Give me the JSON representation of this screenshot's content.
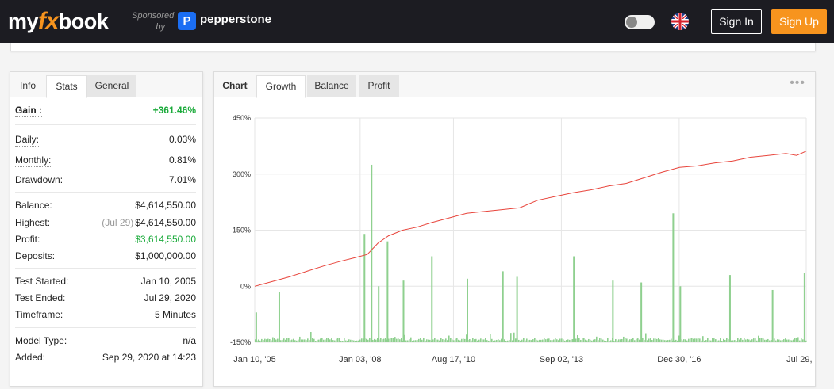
{
  "header": {
    "logo_my": "my",
    "logo_fx": "fx",
    "logo_book": "book",
    "sponsored": "Sponsored",
    "by": "by",
    "sponsor_icon": "P",
    "sponsor_name": "pepperstone",
    "theme_toggle_icon": "toggle-icon",
    "language_icon": "uk-flag-icon",
    "sign_in": "Sign In",
    "sign_up": "Sign Up",
    "accent": "#f7941e"
  },
  "stats_panel": {
    "tabs": [
      "Info",
      "Stats",
      "General"
    ],
    "active_tab": "Stats",
    "gain": {
      "label": "Gain :",
      "value": "+361.46%"
    },
    "daily": {
      "label": "Daily:",
      "value": "0.03%"
    },
    "monthly": {
      "label": "Monthly:",
      "value": "0.81%"
    },
    "drawdown": {
      "label": "Drawdown:",
      "value": "7.01%"
    },
    "balance": {
      "label": "Balance:",
      "value": "$4,614,550.00"
    },
    "highest": {
      "label": "Highest:",
      "date": "(Jul 29)",
      "value": "$4,614,550.00"
    },
    "profit": {
      "label": "Profit:",
      "value": "$3,614,550.00"
    },
    "deposits": {
      "label": "Deposits:",
      "value": "$1,000,000.00"
    },
    "test_started": {
      "label": "Test Started:",
      "value": "Jan 10, 2005"
    },
    "test_ended": {
      "label": "Test Ended:",
      "value": "Jul 29, 2020"
    },
    "timeframe": {
      "label": "Timeframe:",
      "value": "5 Minutes"
    },
    "model_type": {
      "label": "Model Type:",
      "value": "n/a"
    },
    "added": {
      "label": "Added:",
      "value": "Sep 29, 2020 at 14:23"
    }
  },
  "chart_panel": {
    "label": "Chart",
    "tabs": [
      "Growth",
      "Balance",
      "Profit"
    ],
    "active_tab": "Growth",
    "more_icon": "more-dots-icon"
  },
  "chart_data": {
    "type": "line",
    "line_color": "#e8453c",
    "bar_color": "#8fd08f",
    "ylim": [
      -150,
      450
    ],
    "yticks": [
      "450%",
      "300%",
      "150%",
      "0%",
      "-150%"
    ],
    "ytick_values": [
      450,
      300,
      150,
      0,
      -150
    ],
    "xticks": [
      "Jan 10, '05",
      "Jan 03, '08",
      "Aug 17, '10",
      "Sep 02, '13",
      "Dec 30, '16",
      "Jul 29, '20"
    ],
    "xtick_years": [
      2005.03,
      2008.0,
      2010.63,
      2013.67,
      2016.99,
      2020.57
    ],
    "xlim": [
      2005.03,
      2020.57
    ],
    "grid": true,
    "series": [
      {
        "type": "line",
        "x": [
          2005.03,
          2005.5,
          2006.0,
          2006.5,
          2007.0,
          2007.5,
          2007.8,
          2008.2,
          2008.5,
          2008.8,
          2009.2,
          2009.6,
          2010.0,
          2010.6,
          2011.0,
          2011.5,
          2012.0,
          2012.5,
          2013.0,
          2013.5,
          2014.0,
          2014.5,
          2015.0,
          2015.5,
          2016.0,
          2016.5,
          2017.0,
          2017.5,
          2018.0,
          2018.5,
          2019.0,
          2019.5,
          2020.0,
          2020.3,
          2020.57
        ],
        "y": [
          0,
          12,
          25,
          40,
          55,
          68,
          75,
          85,
          115,
          135,
          150,
          158,
          170,
          185,
          195,
          200,
          205,
          210,
          230,
          240,
          250,
          258,
          268,
          275,
          290,
          305,
          318,
          322,
          330,
          335,
          345,
          350,
          355,
          350,
          361.46
        ]
      },
      {
        "type": "bar",
        "spikes_x": [
          2005.05,
          2005.7,
          2008.1,
          2008.3,
          2008.5,
          2008.75,
          2009.2,
          2010.0,
          2011.0,
          2012.0,
          2012.4,
          2014.0,
          2015.1,
          2015.9,
          2016.8,
          2017.0,
          2018.4,
          2019.6,
          2020.5
        ],
        "spikes_y": [
          -70,
          -15,
          140,
          325,
          0,
          120,
          15,
          80,
          20,
          40,
          25,
          80,
          15,
          10,
          195,
          0,
          30,
          -10,
          35
        ]
      }
    ]
  }
}
